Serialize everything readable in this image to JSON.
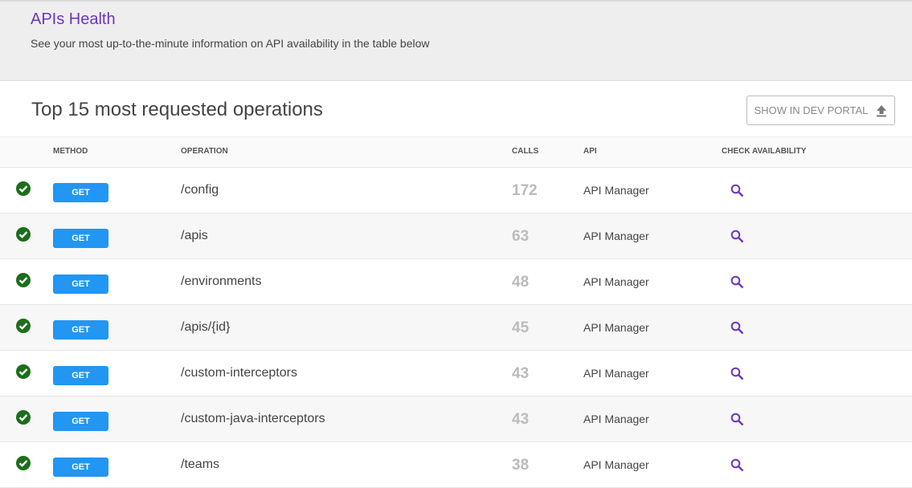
{
  "header": {
    "title": "APIs Health",
    "subtitle": "See your most up-to-the-minute information on API availability in the table below"
  },
  "section": {
    "title": "Top 15 most requested operations",
    "button_label": "SHOW IN DEV PORTAL"
  },
  "columns": {
    "method": "METHOD",
    "operation": "OPERATION",
    "calls": "CALLS",
    "api": "API",
    "check": "CHECK AVAILABILITY"
  },
  "rows": [
    {
      "status": "ok",
      "method": "GET",
      "operation": "/config",
      "calls": "172",
      "api": "API Manager"
    },
    {
      "status": "ok",
      "method": "GET",
      "operation": "/apis",
      "calls": "63",
      "api": "API Manager"
    },
    {
      "status": "ok",
      "method": "GET",
      "operation": "/environments",
      "calls": "48",
      "api": "API Manager"
    },
    {
      "status": "ok",
      "method": "GET",
      "operation": "/apis/{id}",
      "calls": "45",
      "api": "API Manager"
    },
    {
      "status": "ok",
      "method": "GET",
      "operation": "/custom-interceptors",
      "calls": "43",
      "api": "API Manager"
    },
    {
      "status": "ok",
      "method": "GET",
      "operation": "/custom-java-interceptors",
      "calls": "43",
      "api": "API Manager"
    },
    {
      "status": "ok",
      "method": "GET",
      "operation": "/teams",
      "calls": "38",
      "api": "API Manager"
    }
  ],
  "colors": {
    "title": "#6b35c4",
    "method_badge": "#2196f3",
    "status_ok": "#1b6e1b",
    "search_icon": "#6b35c4"
  }
}
